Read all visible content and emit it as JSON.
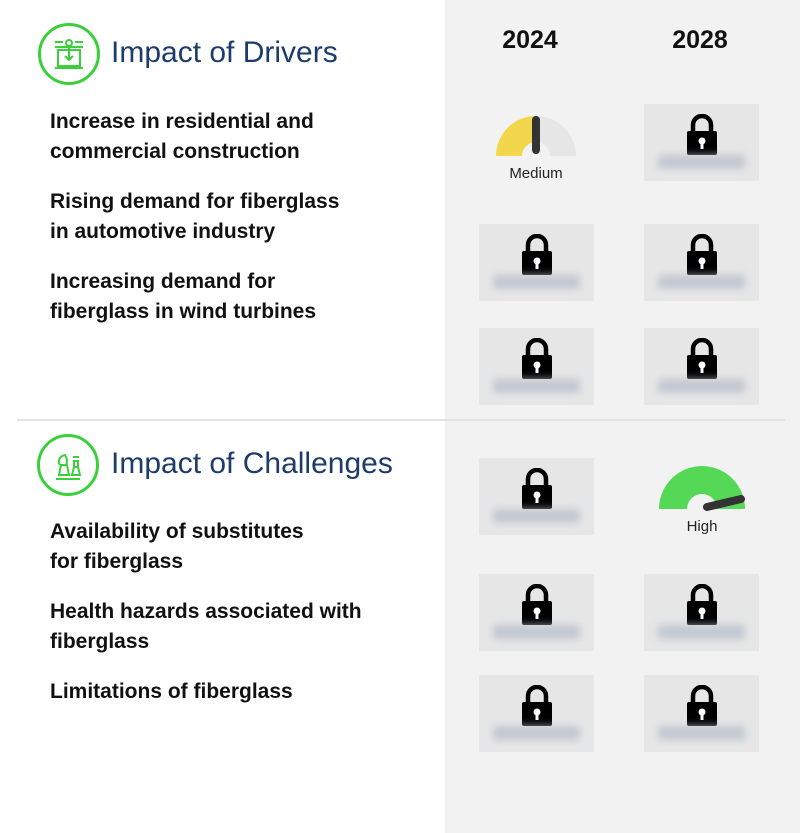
{
  "years": [
    "2024",
    "2028"
  ],
  "drivers": {
    "title": "Impact of Drivers",
    "icon": "drivers-machine-icon",
    "items": [
      {
        "label_line1": "Increase in residential and",
        "label_line2": "commercial construction",
        "impact_2024": "Medium",
        "impact_2028": "locked"
      },
      {
        "label_line1": "Rising demand for fiberglass",
        "label_line2": "in automotive industry",
        "impact_2024": "locked",
        "impact_2028": "locked"
      },
      {
        "label_line1": "Increasing demand for",
        "label_line2": "fiberglass in wind turbines",
        "impact_2024": "locked",
        "impact_2028": "locked"
      }
    ]
  },
  "challenges": {
    "title": "Impact of Challenges",
    "icon": "chess-pieces-icon",
    "items": [
      {
        "label_line1": "Availability of substitutes",
        "label_line2": "for fiberglass",
        "impact_2024": "locked",
        "impact_2028": "High"
      },
      {
        "label_line1": "Health hazards associated with",
        "label_line2": "fiberglass",
        "impact_2024": "locked",
        "impact_2028": "locked"
      },
      {
        "label_line1": "Limitations of fiberglass",
        "label_line2": "",
        "impact_2024": "locked",
        "impact_2028": "locked"
      }
    ]
  },
  "gauges": {
    "medium_label": "Medium",
    "high_label": "High"
  },
  "colors": {
    "title": "#1d3b6b",
    "icon_ring": "#3ccf3c",
    "medium": "#f2d64b",
    "high": "#55d855",
    "panel": "#f2f2f2"
  }
}
